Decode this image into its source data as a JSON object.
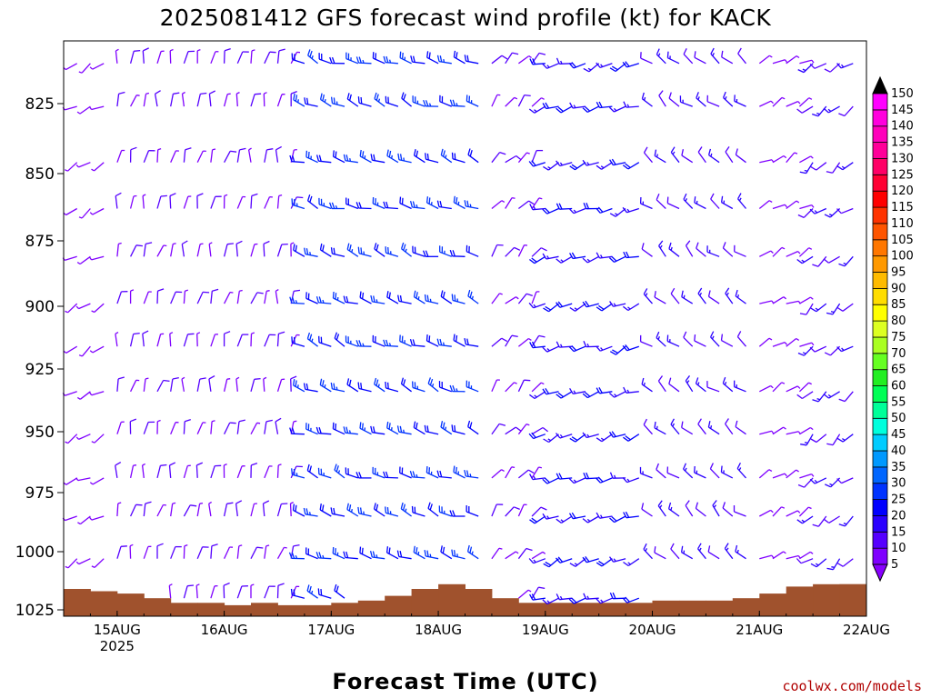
{
  "title": "2025081412 GFS forecast wind profile (kt) for KACK",
  "xlabel": "Forecast Time (UTC)",
  "credit": "coolwx.com/models",
  "chart_data": {
    "type": "wind-barb-profile",
    "title": "2025081412 GFS forecast wind profile (kt) for KACK",
    "xlabel": "Forecast Time (UTC)",
    "ylabel": "",
    "y_axis": {
      "reversed": true,
      "range": [
        1028,
        800
      ],
      "ticks": [
        825,
        850,
        875,
        900,
        925,
        950,
        975,
        1000,
        1025
      ]
    },
    "x_axis": {
      "range": [
        "2025-08-14T12Z",
        "2025-08-22T00Z"
      ],
      "ticks": [
        {
          "label": "15AUG",
          "sublabel": "2025",
          "day": 1
        },
        {
          "label": "16AUG",
          "sublabel": "",
          "day": 2
        },
        {
          "label": "17AUG",
          "sublabel": "",
          "day": 3
        },
        {
          "label": "18AUG",
          "sublabel": "",
          "day": 4
        },
        {
          "label": "19AUG",
          "sublabel": "",
          "day": 5
        },
        {
          "label": "20AUG",
          "sublabel": "",
          "day": 6
        },
        {
          "label": "21AUG",
          "sublabel": "",
          "day": 7
        },
        {
          "label": "22AUG",
          "sublabel": "",
          "day": 8
        }
      ]
    },
    "colorbar": {
      "unit": "kt",
      "levels": [
        5,
        10,
        15,
        20,
        25,
        30,
        35,
        40,
        45,
        50,
        55,
        60,
        65,
        70,
        75,
        80,
        85,
        90,
        95,
        100,
        105,
        110,
        115,
        120,
        125,
        130,
        135,
        140,
        145,
        150
      ],
      "colors": [
        "#7f00ff",
        "#5500ff",
        "#2a00ff",
        "#0000ff",
        "#0033ff",
        "#0066ff",
        "#0099ff",
        "#00ccff",
        "#00ffdd",
        "#00ff99",
        "#00ff55",
        "#22ee22",
        "#66ff22",
        "#aaff22",
        "#ddff22",
        "#ffff00",
        "#ffdd00",
        "#ffbb00",
        "#ff9900",
        "#ff7700",
        "#ff5500",
        "#ff3300",
        "#ff0000",
        "#ff0033",
        "#ff0066",
        "#ff0099",
        "#ff00bb",
        "#ff00dd",
        "#ff00ff"
      ],
      "triangle_top": "#000000",
      "triangle_bottom": "#8800ff"
    },
    "terrain_color": "#a0522d",
    "surface_pressure_hpa_by_day": [
      [
        0,
        1015
      ],
      [
        0.25,
        1015
      ],
      [
        0.5,
        1016
      ],
      [
        0.75,
        1017
      ],
      [
        1.0,
        1018
      ],
      [
        1.25,
        1020
      ],
      [
        1.5,
        1022
      ],
      [
        1.75,
        1022
      ],
      [
        2.0,
        1023
      ],
      [
        2.25,
        1022
      ],
      [
        2.5,
        1023
      ],
      [
        2.75,
        1023
      ],
      [
        3.0,
        1022
      ],
      [
        3.25,
        1021
      ],
      [
        3.5,
        1019
      ],
      [
        3.75,
        1016
      ],
      [
        4.0,
        1014
      ],
      [
        4.25,
        1016
      ],
      [
        4.5,
        1020
      ],
      [
        4.75,
        1022
      ],
      [
        5.0,
        1022
      ],
      [
        5.25,
        1022
      ],
      [
        5.5,
        1022
      ],
      [
        5.75,
        1022
      ],
      [
        6.0,
        1021
      ],
      [
        6.25,
        1021
      ],
      [
        6.5,
        1021
      ],
      [
        6.75,
        1020
      ],
      [
        7.0,
        1018
      ],
      [
        7.25,
        1015
      ],
      [
        7.5,
        1014
      ],
      [
        7.75,
        1014
      ]
    ],
    "barb_levels_hpa": [
      809,
      826,
      846,
      863,
      881,
      899,
      916,
      934,
      951,
      969,
      985,
      1003,
      1020
    ],
    "wind_by_period": [
      {
        "day_range": [
          0.0,
          0.5
        ],
        "dir_deg": 240,
        "speed_kt": 5
      },
      {
        "day_range": [
          0.5,
          2.25
        ],
        "dir_deg": 10,
        "speed_kt": 10
      },
      {
        "day_range": [
          2.25,
          4.0
        ],
        "dir_deg": 290,
        "speed_kt": 25
      },
      {
        "day_range": [
          4.0,
          4.5
        ],
        "dir_deg": 40,
        "speed_kt": 10
      },
      {
        "day_range": [
          4.5,
          5.5
        ],
        "dir_deg": 250,
        "speed_kt": 20
      },
      {
        "day_range": [
          5.5,
          6.5
        ],
        "dir_deg": 310,
        "speed_kt": 15
      },
      {
        "day_range": [
          6.5,
          7.0
        ],
        "dir_deg": 60,
        "speed_kt": 5
      },
      {
        "day_range": [
          7.0,
          8.0
        ],
        "dir_deg": 230,
        "speed_kt": 15
      }
    ]
  }
}
